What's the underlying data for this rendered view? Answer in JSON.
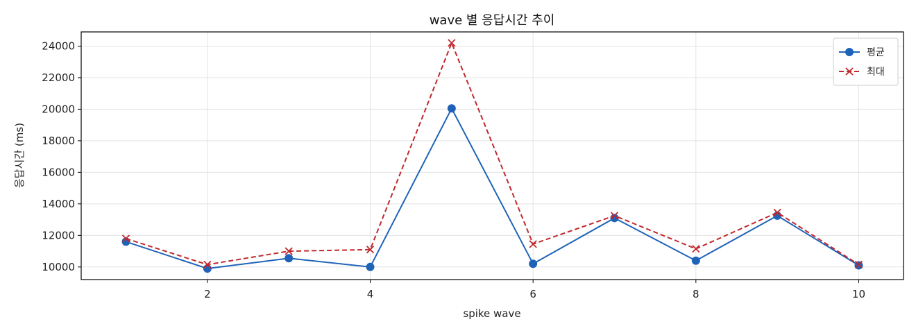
{
  "chart_data": {
    "type": "line",
    "title": "wave 별 응답시간 추이",
    "xlabel": "spike wave",
    "ylabel": "응답시간 (ms)",
    "x": [
      1,
      2,
      3,
      4,
      5,
      6,
      7,
      8,
      9,
      10
    ],
    "xlim": [
      0.45,
      10.55
    ],
    "ylim": [
      9200,
      24900
    ],
    "xticks": [
      2,
      4,
      6,
      8,
      10
    ],
    "yticks": [
      10000,
      12000,
      14000,
      16000,
      18000,
      20000,
      22000,
      24000
    ],
    "grid": true,
    "legend_position": "top-right",
    "series": [
      {
        "name": "평균",
        "color": "#1f63b8",
        "line_style": "solid",
        "marker": "circle",
        "values": [
          11600,
          9900,
          10550,
          10000,
          20050,
          10200,
          13100,
          10400,
          13250,
          10100
        ]
      },
      {
        "name": "최대",
        "color": "#c0282d",
        "line_style": "dashed",
        "marker": "x",
        "values": [
          11800,
          10150,
          11000,
          11100,
          24200,
          11450,
          13250,
          11150,
          13450,
          10150
        ]
      }
    ]
  }
}
